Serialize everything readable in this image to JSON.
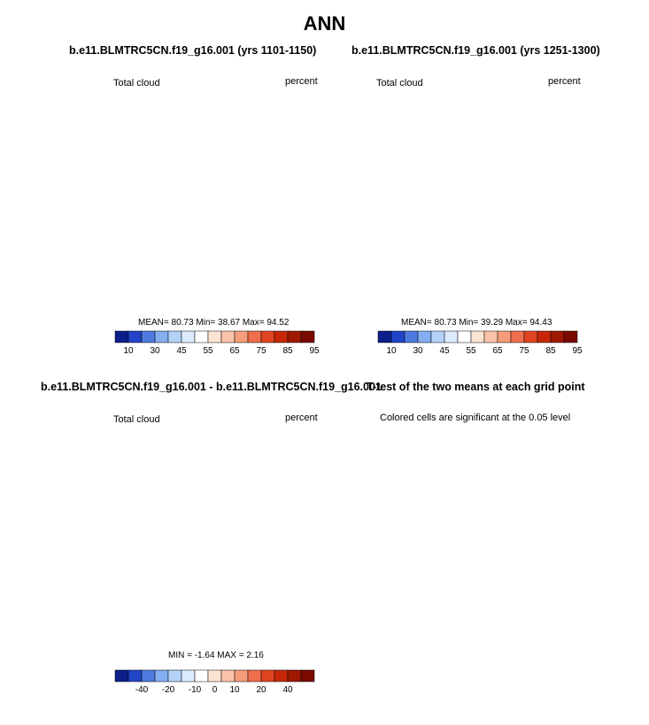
{
  "title": "ANN",
  "colors": {
    "abs_scale": [
      "#0a1f8a",
      "#2244c8",
      "#4f7be0",
      "#83aef0",
      "#b3d2f8",
      "#dbeaff",
      "#ffffff",
      "#fde3d4",
      "#fbc3a8",
      "#f59d7a",
      "#ef6f4c",
      "#e04420",
      "#c72708",
      "#a01800",
      "#7a0a00"
    ],
    "diff_scale": [
      "#0a1f8a",
      "#2244c8",
      "#4f7be0",
      "#83aef0",
      "#b3d2f8",
      "#dbeaff",
      "#ffffff",
      "#fde3d4",
      "#fbc3a8",
      "#f59d7a",
      "#ef6f4c",
      "#e04420",
      "#c72708",
      "#a01800",
      "#7a0a00"
    ],
    "ttest_fill": "#f26a3f"
  },
  "panels": [
    {
      "title": "b.e11.BLMTRC5CN.f19_g16.001 (yrs 1101-1150)",
      "left_label": "Total cloud",
      "right_label": "percent",
      "stats": "MEAN= 80.73  Min= 38.67  Max= 94.52",
      "colorbar_labels": [
        "10",
        "30",
        "45",
        "55",
        "65",
        "75",
        "85",
        "95"
      ],
      "map_icon": "antarctica-map"
    },
    {
      "title": "b.e11.BLMTRC5CN.f19_g16.001 (yrs 1251-1300)",
      "left_label": "Total cloud",
      "right_label": "percent",
      "stats": "MEAN= 80.73  Min= 39.29  Max= 94.43",
      "colorbar_labels": [
        "10",
        "30",
        "45",
        "55",
        "65",
        "75",
        "85",
        "95"
      ],
      "map_icon": "antarctica-map"
    },
    {
      "title": "b.e11.BLMTRC5CN.f19_g16.001 - b.e11.BLMTRC5CN.f19_g16.001",
      "left_label": "Total cloud",
      "right_label": "percent",
      "stats": "MIN =  -1.64 MAX =  2.16",
      "colorbar_labels": [
        "-40",
        "-20",
        "-10",
        "0",
        "10",
        "20",
        "40"
      ],
      "map_icon": "antarctica-map"
    },
    {
      "title": "T-test of the two means at each grid point",
      "subtitle": "Colored cells are significant at the 0.05 level",
      "map_icon": "antarctica-map"
    }
  ]
}
